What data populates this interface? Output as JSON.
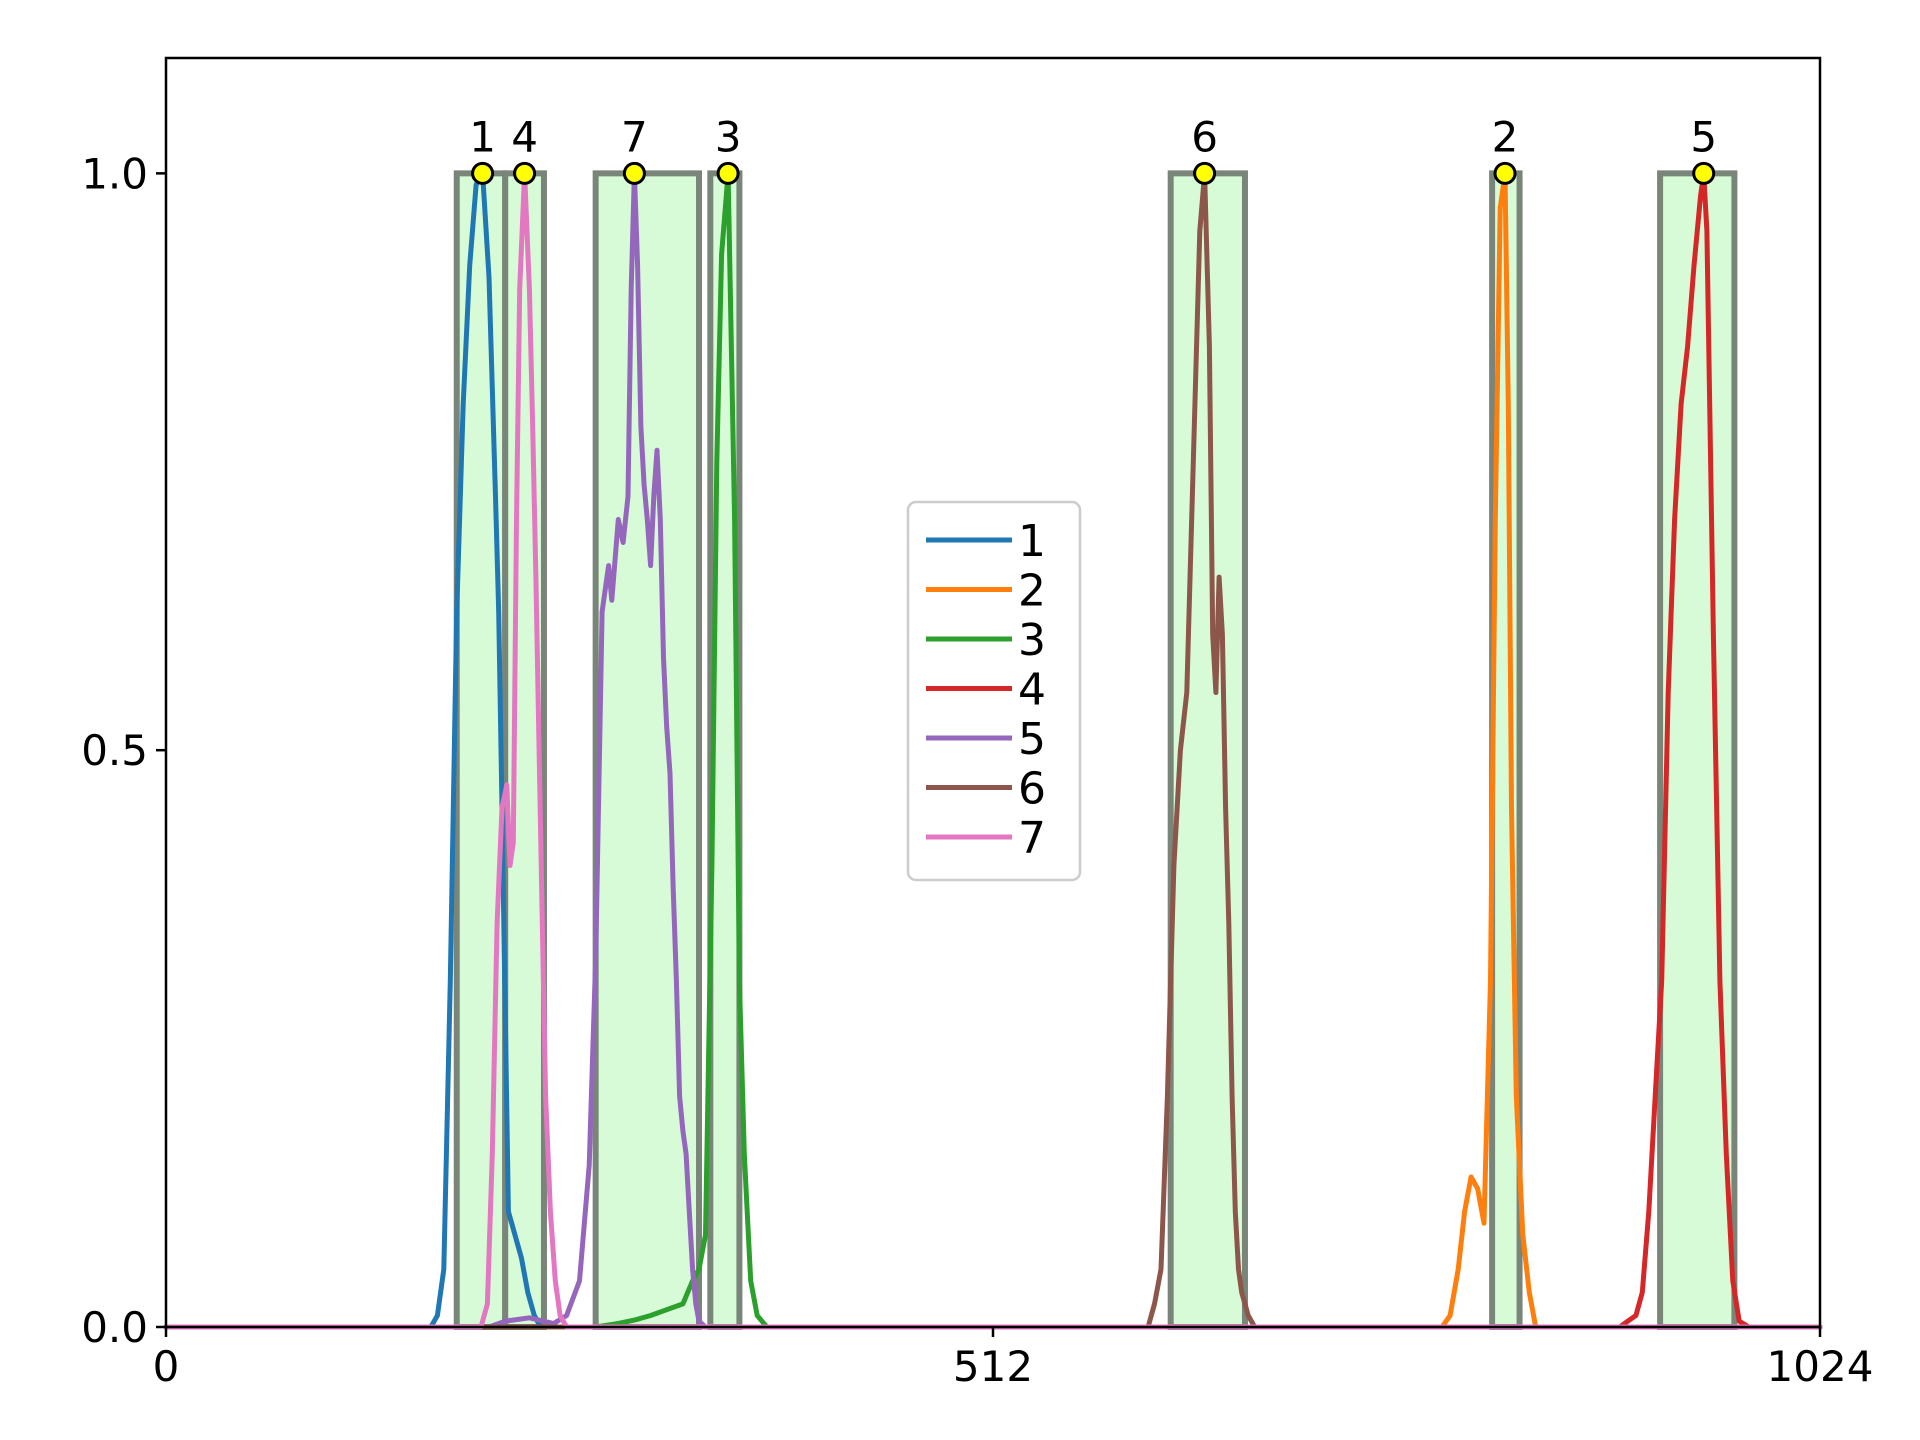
{
  "chart_data": {
    "type": "line",
    "xlim": [
      0,
      1024
    ],
    "ylim": [
      0,
      1.1
    ],
    "x_ticks": [
      {
        "value": 0,
        "label": "0"
      },
      {
        "value": 512,
        "label": "512"
      },
      {
        "value": 1024,
        "label": "1024"
      }
    ],
    "y_ticks": [
      {
        "value": 0,
        "label": "0.0"
      },
      {
        "value": 0.5,
        "label": "0.5"
      },
      {
        "value": 1.0,
        "label": "1.0"
      }
    ],
    "grid": false,
    "legend_position": "center",
    "regions": [
      {
        "start": 180,
        "end": 210
      },
      {
        "start": 210,
        "end": 234
      },
      {
        "start": 266,
        "end": 330
      },
      {
        "start": 337,
        "end": 355
      },
      {
        "start": 622,
        "end": 668
      },
      {
        "start": 821,
        "end": 838
      },
      {
        "start": 925,
        "end": 971
      }
    ],
    "region_fill_color": "#d3fbd3",
    "region_edge_color": "#7a857a",
    "peaks": [
      {
        "label": "1",
        "x": 196,
        "y": 1.0
      },
      {
        "label": "4",
        "x": 222,
        "y": 1.0
      },
      {
        "label": "7",
        "x": 290,
        "y": 1.0
      },
      {
        "label": "3",
        "x": 348,
        "y": 1.0
      },
      {
        "label": "6",
        "x": 643,
        "y": 1.0
      },
      {
        "label": "2",
        "x": 829,
        "y": 1.0
      },
      {
        "label": "5",
        "x": 952,
        "y": 1.0
      }
    ],
    "peak_marker_color": "#ffff00",
    "series": [
      {
        "name": "1",
        "color": "#1f77b4",
        "x": [
          0,
          164,
          168,
          172,
          176,
          180,
          184,
          188,
          192,
          196,
          200,
          204,
          206,
          208,
          212,
          216,
          220,
          224,
          228,
          232,
          236,
          1024
        ],
        "y": [
          0,
          0,
          0.01,
          0.05,
          0.3,
          0.62,
          0.8,
          0.92,
          0.99,
          1.0,
          0.91,
          0.72,
          0.62,
          0.45,
          0.1,
          0.08,
          0.06,
          0.03,
          0.01,
          0,
          0,
          0
        ]
      },
      {
        "name": "2",
        "color": "#ff7f0e",
        "x": [
          0,
          790,
          795,
          800,
          804,
          808,
          812,
          816,
          820,
          823,
          826,
          829,
          831,
          833,
          836,
          840,
          844,
          848,
          852,
          1024
        ],
        "y": [
          0,
          0,
          0.01,
          0.05,
          0.1,
          0.13,
          0.12,
          0.09,
          0.3,
          0.7,
          0.97,
          1.0,
          0.8,
          0.45,
          0.2,
          0.08,
          0.03,
          0,
          0,
          0
        ]
      },
      {
        "name": "3",
        "color": "#2ca02c",
        "x": [
          0,
          266,
          280,
          290,
          300,
          310,
          320,
          326,
          330,
          334,
          338,
          341,
          344,
          348,
          352,
          355,
          358,
          362,
          366,
          372,
          1024
        ],
        "y": [
          0,
          0,
          0.003,
          0.006,
          0.01,
          0.015,
          0.02,
          0.04,
          0.05,
          0.08,
          0.4,
          0.75,
          0.93,
          1.0,
          0.7,
          0.3,
          0.15,
          0.04,
          0.01,
          0,
          0
        ]
      },
      {
        "name": "4",
        "color": "#d62728",
        "x": [
          0,
          900,
          905,
          910,
          914,
          918,
          922,
          926,
          930,
          934,
          938,
          942,
          946,
          950,
          952,
          954,
          958,
          962,
          966,
          970,
          974,
          980,
          1024
        ],
        "y": [
          0,
          0,
          0.005,
          0.01,
          0.03,
          0.1,
          0.2,
          0.3,
          0.55,
          0.7,
          0.8,
          0.85,
          0.92,
          0.98,
          1.0,
          0.95,
          0.6,
          0.3,
          0.15,
          0.04,
          0.005,
          0,
          0
        ]
      },
      {
        "name": "5",
        "color": "#9467bd",
        "x": [
          0,
          200,
          210,
          225,
          240,
          248,
          256,
          262,
          266,
          270,
          274,
          276,
          280,
          283,
          286,
          288,
          290,
          292,
          294,
          296,
          298,
          300,
          302,
          304,
          306,
          308,
          310,
          312,
          314,
          316,
          318,
          320,
          322,
          324,
          326,
          328,
          330,
          334,
          338,
          1024
        ],
        "y": [
          0,
          0,
          0.005,
          0.008,
          0.003,
          0.01,
          0.04,
          0.14,
          0.32,
          0.62,
          0.66,
          0.63,
          0.7,
          0.68,
          0.72,
          0.9,
          1.0,
          0.92,
          0.78,
          0.73,
          0.7,
          0.66,
          0.72,
          0.76,
          0.7,
          0.58,
          0.52,
          0.48,
          0.38,
          0.3,
          0.2,
          0.17,
          0.15,
          0.1,
          0.05,
          0.02,
          0.005,
          0,
          0,
          0
        ]
      },
      {
        "name": "6",
        "color": "#8c564b",
        "x": [
          0,
          608,
          612,
          616,
          620,
          624,
          628,
          632,
          636,
          640,
          643,
          646,
          648,
          650,
          652,
          654,
          656,
          658,
          660,
          662,
          664,
          666,
          668,
          670,
          674,
          678,
          1024
        ],
        "y": [
          0,
          0,
          0.02,
          0.05,
          0.2,
          0.4,
          0.5,
          0.55,
          0.75,
          0.95,
          1.0,
          0.85,
          0.6,
          0.55,
          0.65,
          0.6,
          0.45,
          0.35,
          0.2,
          0.1,
          0.05,
          0.03,
          0.02,
          0.01,
          0,
          0,
          0
        ]
      },
      {
        "name": "7",
        "color": "#e377c2",
        "x": [
          0,
          195,
          199,
          202,
          205,
          208,
          211,
          213,
          215,
          217,
          219,
          222,
          225,
          227,
          229,
          231,
          233,
          235,
          238,
          241,
          244,
          248,
          252,
          1024
        ],
        "y": [
          0,
          0,
          0.02,
          0.15,
          0.35,
          0.45,
          0.47,
          0.4,
          0.42,
          0.7,
          0.9,
          1.0,
          0.9,
          0.78,
          0.65,
          0.5,
          0.35,
          0.2,
          0.1,
          0.04,
          0.01,
          0,
          0,
          0
        ]
      }
    ]
  }
}
